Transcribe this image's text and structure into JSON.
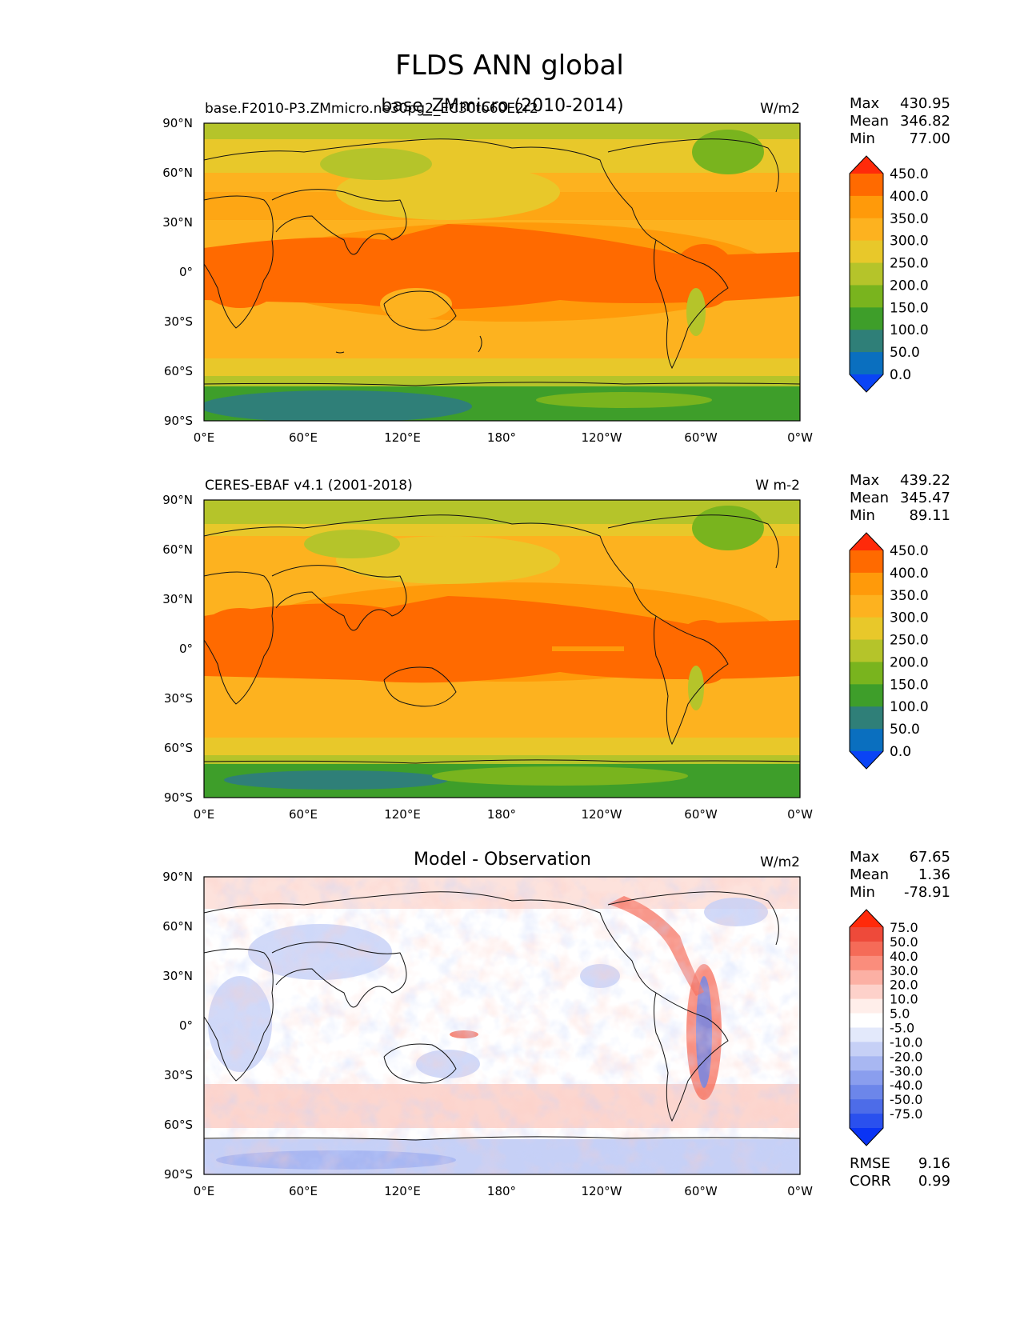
{
  "figure": {
    "title": "FLDS ANN global"
  },
  "axes": {
    "lat_ticks": [
      "90°N",
      "60°N",
      "30°N",
      "0°",
      "30°S",
      "60°S",
      "90°S"
    ],
    "lon_ticks": [
      "0°E",
      "60°E",
      "120°E",
      "180°",
      "120°W",
      "60°W",
      "0°W"
    ]
  },
  "panels": [
    {
      "id": "model",
      "left_title": "base.F2010-P3.ZMmicro.ne30pg2_EC30to60E2r2",
      "center_title": "base_ZMmicro (2010-2014)",
      "units": "W/m2",
      "stats": [
        {
          "label": "Max",
          "value": "430.95"
        },
        {
          "label": "Mean",
          "value": "346.82"
        },
        {
          "label": "Min",
          "value": "77.00"
        }
      ],
      "colorbar": [
        "450.0",
        "400.0",
        "350.0",
        "300.0",
        "250.0",
        "200.0",
        "150.0",
        "100.0",
        "50.0",
        "0.0"
      ]
    },
    {
      "id": "obs",
      "left_title": "CERES-EBAF v4.1 (2001-2018)",
      "center_title": "",
      "units": "W m-2",
      "stats": [
        {
          "label": "Max",
          "value": "439.22"
        },
        {
          "label": "Mean",
          "value": "345.47"
        },
        {
          "label": "Min",
          "value": "89.11"
        }
      ],
      "colorbar": [
        "450.0",
        "400.0",
        "350.0",
        "300.0",
        "250.0",
        "200.0",
        "150.0",
        "100.0",
        "50.0",
        "0.0"
      ]
    },
    {
      "id": "diff",
      "left_title": "",
      "center_title": "Model - Observation",
      "units": "W/m2",
      "stats": [
        {
          "label": "Max",
          "value": "67.65"
        },
        {
          "label": "Mean",
          "value": "1.36"
        },
        {
          "label": "Min",
          "value": "-78.91"
        }
      ],
      "colorbar": [
        "75.0",
        "50.0",
        "40.0",
        "30.0",
        "20.0",
        "10.0",
        "5.0",
        "-5.0",
        "-10.0",
        "-20.0",
        "-30.0",
        "-40.0",
        "-50.0",
        "-75.0"
      ],
      "extra_stats": [
        {
          "label": "RMSE",
          "value": "9.16"
        },
        {
          "label": "CORR",
          "value": "0.99"
        }
      ]
    }
  ],
  "palette": {
    "flux": [
      "#ff2a0a",
      "#ff6a00",
      "#ff9a0a",
      "#fdb21f",
      "#e8c82a",
      "#b5c42a",
      "#79b41e",
      "#3e9e2a",
      "#2f7f78",
      "#0a6fbf",
      "#0a44f5"
    ],
    "diff": [
      "#ff2a0a",
      "#ee4a3a",
      "#f56b58",
      "#fa8d7c",
      "#fcb0a4",
      "#fdd1ca",
      "#ffeeea",
      "#ffffff",
      "#e3e9fb",
      "#c6d0f6",
      "#a8b7f2",
      "#8a9eee",
      "#6c86ea",
      "#4d6ce8",
      "#2a50ee",
      "#0a34f5"
    ]
  }
}
